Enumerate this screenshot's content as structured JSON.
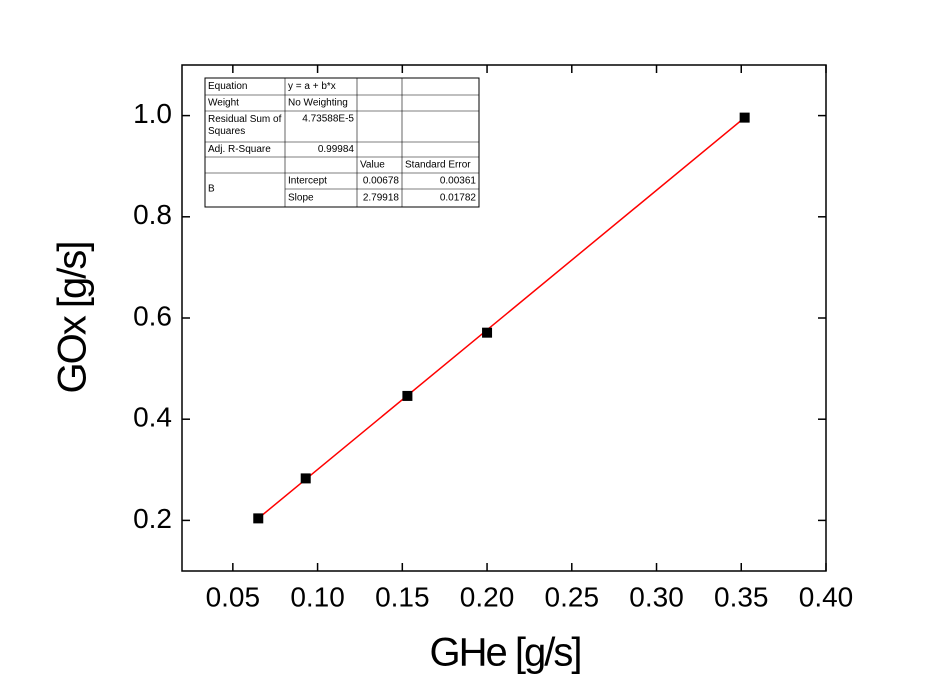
{
  "chart_data": {
    "type": "scatter",
    "xlabel": "GHe [g/s]",
    "ylabel": "GOx [g/s]",
    "xlim": [
      0.02,
      0.4
    ],
    "ylim": [
      0.1,
      1.1
    ],
    "xticks": [
      0.05,
      {
        "value": 0.1,
        "label": "0.10"
      },
      0.15,
      {
        "value": 0.2,
        "label": "0.20"
      },
      0.25,
      {
        "value": 0.3,
        "label": "0.30"
      },
      0.35,
      {
        "value": 0.4,
        "label": "0.40"
      }
    ],
    "yticks": [
      0.2,
      0.4,
      0.6,
      0.8,
      {
        "value": 1,
        "label": "1.0"
      }
    ],
    "series": [
      {
        "type": "scatter",
        "color": "#000000",
        "x": [
          0.065,
          0.093,
          0.153,
          0.2,
          0.352
        ],
        "values": [
          0.204,
          0.283,
          0.446,
          0.571,
          0.996
        ]
      },
      {
        "type": "line",
        "color": "#ff0000",
        "x": [
          0.065,
          0.352
        ],
        "values": [
          0.204,
          0.996
        ]
      }
    ],
    "table": {
      "rows": [
        [
          "Equation",
          "y = a + b*x",
          "",
          ""
        ],
        [
          "Weight",
          "No Weighting",
          "",
          ""
        ],
        [
          "Residual Sum of Squares",
          "4.73588E-5",
          "",
          ""
        ],
        [
          "Adj. R-Square",
          "0.99984",
          "",
          ""
        ],
        [
          "",
          "",
          "Value",
          "Standard Error"
        ],
        [
          "B",
          "Intercept",
          "0.00678",
          "0.00361"
        ],
        [
          "",
          "Slope",
          "2.79918",
          "0.01782"
        ]
      ]
    }
  }
}
